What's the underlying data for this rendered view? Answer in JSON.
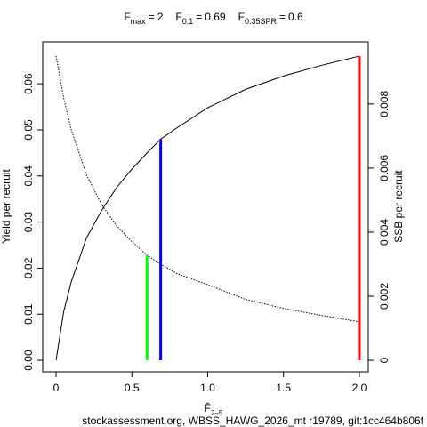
{
  "chart_data": {
    "type": "line",
    "title_separator": "=",
    "reference_lines": [
      {
        "label": "F",
        "sub": "max",
        "x": 2,
        "y": 0.066,
        "axis": "y",
        "color": "#ff0000"
      },
      {
        "label": "F",
        "sub": "0.1",
        "x": 0.69,
        "y": 0.048,
        "axis": "y",
        "color": "#0000ff"
      },
      {
        "label": "F",
        "sub": "0.35SPR",
        "x": 0.6,
        "y": 0.00328,
        "axis": "y2",
        "color": "#00ff00"
      }
    ],
    "x_label": {
      "text": "F̄",
      "sub": "2–5"
    },
    "y_label": "Yield per recruit",
    "y2_label": "SSB per recruit",
    "footer": "stockassessment.org, WBSS_HAWG_2026_mt r19789, git:1cc464b806f",
    "x": [
      0,
      0.05,
      0.1,
      0.2,
      0.3,
      0.4,
      0.5,
      0.6,
      0.69,
      0.8,
      1.0,
      1.25,
      1.5,
      1.75,
      2.0
    ],
    "series": [
      {
        "name": "Yield per recruit",
        "color": "#000000",
        "line_style": "solid",
        "axis": "y",
        "values": [
          0,
          0.0105,
          0.017,
          0.0265,
          0.0325,
          0.0375,
          0.0415,
          0.045,
          0.048,
          0.0505,
          0.0548,
          0.0588,
          0.0617,
          0.064,
          0.066
        ]
      },
      {
        "name": "SSB per recruit",
        "color": "#000000",
        "line_style": "dotted",
        "axis": "y2",
        "values": [
          0.0095,
          0.0082,
          0.0072,
          0.0058,
          0.00486,
          0.0042,
          0.0037,
          0.00328,
          0.003,
          0.0027,
          0.00236,
          0.0019,
          0.00162,
          0.0014,
          0.0012
        ]
      }
    ],
    "xlim": [
      -0.088,
      2.059
    ],
    "ylim": [
      -0.0025,
      0.0691
    ],
    "y2lim": [
      -0.00036,
      0.00994
    ],
    "xticks": [
      0,
      0.5,
      {
        "value": 1,
        "label": "1.0"
      },
      1.5,
      {
        "value": 2,
        "label": "2.0"
      }
    ],
    "yticks": [
      {
        "value": 0,
        "label": "0.00"
      },
      0.01,
      0.02,
      0.03,
      0.04,
      0.05,
      0.06
    ],
    "y2ticks": [
      0,
      0.002,
      0.004,
      0.006,
      0.008
    ]
  }
}
